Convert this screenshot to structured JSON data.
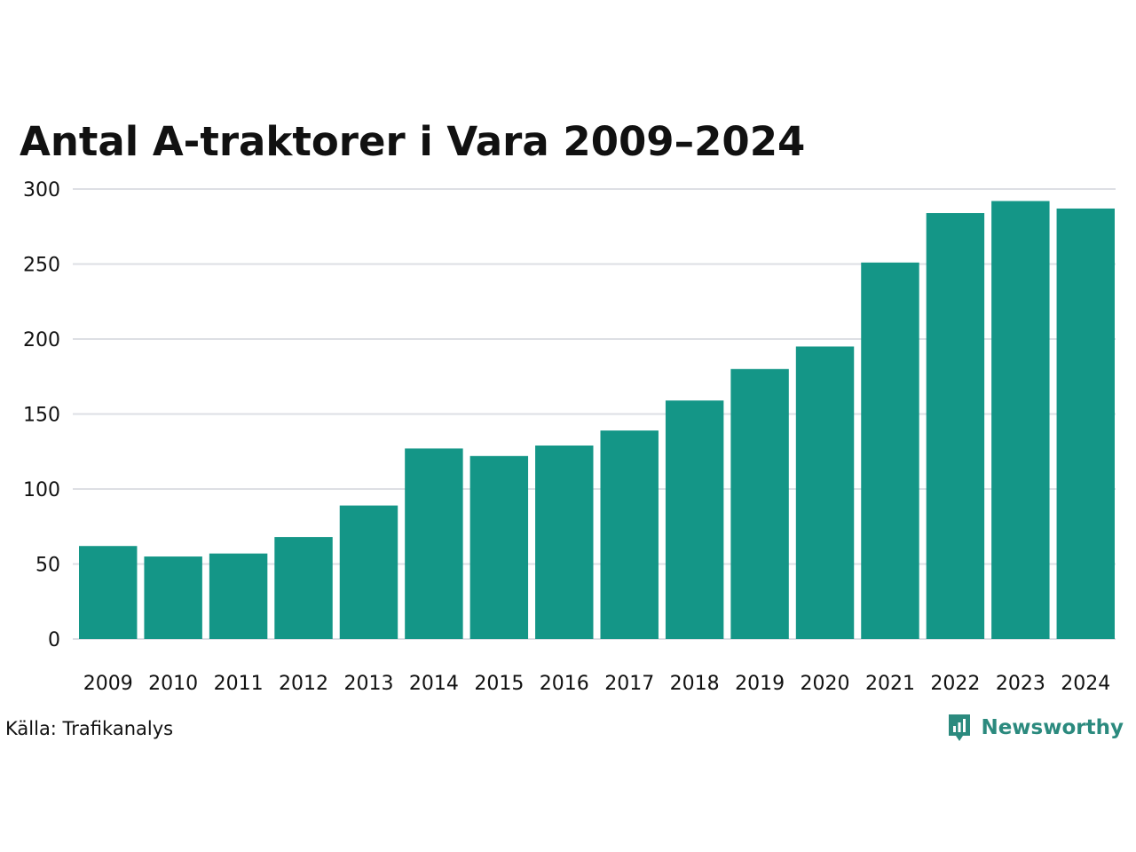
{
  "chart_data": {
    "type": "bar",
    "title": "Antal A-traktorer i Vara 2009–2024",
    "categories": [
      "2009",
      "2010",
      "2011",
      "2012",
      "2013",
      "2014",
      "2015",
      "2016",
      "2017",
      "2018",
      "2019",
      "2020",
      "2021",
      "2022",
      "2023",
      "2024"
    ],
    "values": [
      62,
      55,
      57,
      68,
      89,
      127,
      122,
      129,
      139,
      159,
      180,
      195,
      251,
      284,
      292,
      287
    ],
    "ylim": [
      0,
      300
    ],
    "yticks": [
      0,
      50,
      100,
      150,
      200,
      250,
      300
    ],
    "grid": true,
    "legend": "none",
    "bar_color": "#149687",
    "grid_color": "#dddfe4"
  },
  "footer": {
    "source": "Källa: Trafikanalys",
    "brand": "Newsworthy",
    "brand_color": "#2b8a7e",
    "brand_icon": "newsworthy-logo-icon"
  }
}
